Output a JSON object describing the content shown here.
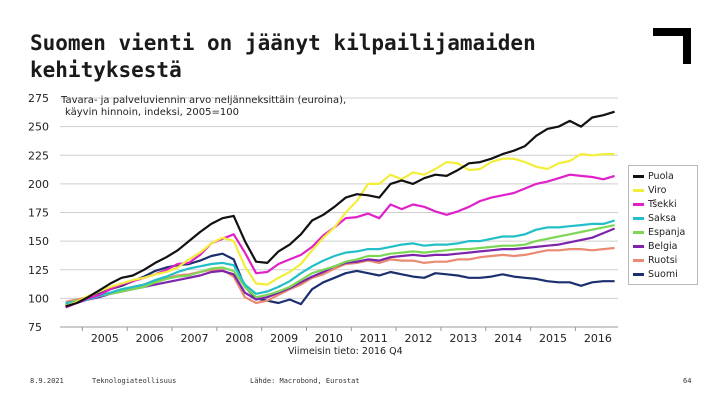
{
  "slide": {
    "title": "Suomen vienti on jäänyt kilpailijamaiden kehityksestä",
    "footer_date": "8.9.2021",
    "footer_org": "Teknologiateollisuus",
    "footer_source": "Lähde: Macrobond, Eurostat",
    "page_number": "64"
  },
  "chart_data": {
    "type": "line",
    "title": "Tavara- ja palveluviennin arvo neljänneksittäin (euroina), käyvin hinnoin, indeksi, 2005=100",
    "title_lines": [
      "Tavara- ja palveluviennin arvo neljänneksittäin (euroina),",
      "käyvin hinnoin, indeksi, 2005=100"
    ],
    "note": "Viimeisin tieto: 2016 Q4",
    "xlim": [
      2004.5,
      2016.95
    ],
    "ylim": [
      75,
      275
    ],
    "yticks": [
      75,
      100,
      125,
      150,
      175,
      200,
      225,
      250,
      275
    ],
    "xticks": [
      2005,
      2006,
      2007,
      2008,
      2009,
      2010,
      2011,
      2012,
      2013,
      2014,
      2015,
      2016
    ],
    "ytick_labels": [
      "75",
      "100",
      "125",
      "150",
      "175",
      "200",
      "225",
      "250",
      "275"
    ],
    "xtick_labels": [
      "2005",
      "2006",
      "2007",
      "2008",
      "2009",
      "2010",
      "2011",
      "2012",
      "2013",
      "2014",
      "2015",
      "2016"
    ],
    "grid": true,
    "legend_position": "right",
    "x": [
      2004.625,
      2004.875,
      2005.125,
      2005.375,
      2005.625,
      2005.875,
      2006.125,
      2006.375,
      2006.625,
      2006.875,
      2007.125,
      2007.375,
      2007.625,
      2007.875,
      2008.125,
      2008.375,
      2008.625,
      2008.875,
      2009.125,
      2009.375,
      2009.625,
      2009.875,
      2010.125,
      2010.375,
      2010.625,
      2010.875,
      2011.125,
      2011.375,
      2011.625,
      2011.875,
      2012.125,
      2012.375,
      2012.625,
      2012.875,
      2013.125,
      2013.375,
      2013.625,
      2013.875,
      2014.125,
      2014.375,
      2014.625,
      2014.875,
      2015.125,
      2015.375,
      2015.625,
      2015.875,
      2016.125,
      2016.375,
      2016.625,
      2016.875
    ],
    "series": [
      {
        "name": "Puola",
        "color": "#111111",
        "values": [
          93,
          96,
          101,
          107,
          113,
          118,
          120,
          125,
          131,
          136,
          142,
          150,
          158,
          165,
          170,
          172,
          150,
          132,
          131,
          141,
          147,
          156,
          168,
          173,
          180,
          188,
          191,
          190,
          188,
          200,
          203,
          200,
          205,
          208,
          207,
          212,
          218,
          219,
          222,
          226,
          229,
          233,
          242,
          248,
          250,
          255,
          250,
          258,
          260,
          263
        ]
      },
      {
        "name": "Viro",
        "color": "#f2ee3a",
        "values": [
          93,
          97,
          102,
          106,
          110,
          113,
          116,
          118,
          121,
          123,
          127,
          134,
          140,
          148,
          153,
          150,
          128,
          113,
          112,
          118,
          123,
          130,
          142,
          153,
          162,
          175,
          185,
          200,
          200,
          208,
          204,
          210,
          208,
          213,
          219,
          218,
          212,
          213,
          219,
          222,
          222,
          219,
          215,
          213,
          218,
          220,
          226,
          225,
          226,
          226
        ]
      },
      {
        "name": "Tšekki",
        "color": "#e020c8",
        "values": [
          92,
          96,
          100,
          103,
          108,
          112,
          115,
          118,
          121,
          125,
          130,
          131,
          138,
          148,
          152,
          156,
          140,
          122,
          123,
          130,
          134,
          138,
          145,
          155,
          162,
          170,
          171,
          174,
          170,
          182,
          178,
          182,
          180,
          176,
          173,
          176,
          180,
          185,
          188,
          190,
          192,
          196,
          200,
          202,
          205,
          208,
          207,
          206,
          204,
          207
        ]
      },
      {
        "name": "Saksa",
        "color": "#22bfc8",
        "values": [
          96,
          97,
          99,
          102,
          105,
          108,
          110,
          112,
          116,
          119,
          123,
          126,
          128,
          130,
          131,
          129,
          112,
          104,
          106,
          110,
          115,
          122,
          128,
          133,
          137,
          140,
          141,
          143,
          143,
          145,
          147,
          148,
          146,
          147,
          147,
          148,
          150,
          150,
          152,
          154,
          154,
          156,
          160,
          162,
          162,
          163,
          164,
          165,
          165,
          168
        ]
      },
      {
        "name": "Espanja",
        "color": "#7ed657",
        "values": [
          95,
          98,
          100,
          102,
          104,
          106,
          108,
          110,
          114,
          117,
          119,
          120,
          123,
          126,
          127,
          124,
          110,
          101,
          103,
          106,
          110,
          116,
          122,
          125,
          128,
          132,
          134,
          137,
          137,
          139,
          140,
          141,
          140,
          141,
          142,
          143,
          143,
          144,
          145,
          146,
          146,
          147,
          150,
          152,
          154,
          156,
          158,
          160,
          162,
          164
        ]
      },
      {
        "name": "Belgia",
        "color": "#7e24aa",
        "values": [
          94,
          96,
          99,
          101,
          104,
          106,
          108,
          110,
          112,
          114,
          116,
          118,
          120,
          123,
          124,
          121,
          105,
          99,
          101,
          105,
          109,
          114,
          119,
          123,
          128,
          131,
          132,
          134,
          133,
          136,
          137,
          138,
          137,
          138,
          138,
          139,
          140,
          141,
          142,
          143,
          143,
          144,
          145,
          146,
          147,
          149,
          151,
          153,
          157,
          161
        ]
      },
      {
        "name": "Ruotsi",
        "color": "#ea8a72",
        "values": [
          97,
          99,
          101,
          103,
          105,
          107,
          110,
          112,
          116,
          118,
          120,
          121,
          123,
          125,
          125,
          119,
          101,
          96,
          98,
          103,
          108,
          112,
          118,
          121,
          126,
          130,
          131,
          133,
          131,
          134,
          133,
          133,
          131,
          132,
          132,
          134,
          134,
          136,
          137,
          138,
          137,
          138,
          140,
          142,
          142,
          143,
          143,
          142,
          143,
          144
        ]
      },
      {
        "name": "Suomi",
        "color": "#1b2f6e",
        "values": [
          95,
          97,
          100,
          104,
          108,
          111,
          115,
          119,
          124,
          127,
          129,
          130,
          133,
          137,
          139,
          134,
          110,
          100,
          98,
          96,
          99,
          95,
          108,
          114,
          118,
          122,
          124,
          122,
          120,
          123,
          121,
          119,
          118,
          122,
          121,
          120,
          118,
          118,
          119,
          121,
          119,
          118,
          117,
          115,
          114,
          114,
          111,
          114,
          115,
          115
        ]
      }
    ]
  }
}
